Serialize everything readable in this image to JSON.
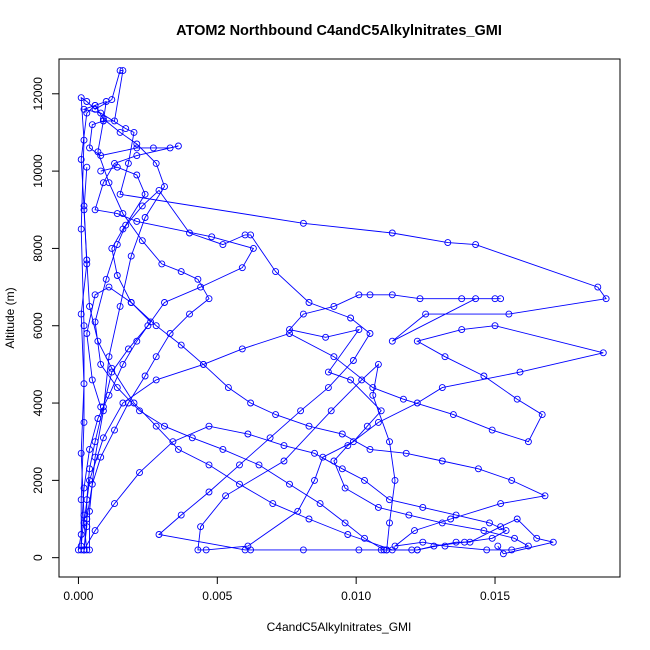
{
  "chart_data": {
    "type": "line",
    "title": "ATOM2 Northbound C4andC5Alkylnitrates_GMI",
    "xlabel": "C4andC5Alkylnitrates_GMI",
    "ylabel": "Altitude (m)",
    "xlim": [
      -0.0007,
      0.0195
    ],
    "ylim": [
      -500,
      12900
    ],
    "x_ticks": [
      0.0,
      0.005,
      0.01,
      0.015
    ],
    "x_tick_labels": [
      "0.000",
      "0.005",
      "0.010",
      "0.015"
    ],
    "y_ticks": [
      0,
      2000,
      4000,
      6000,
      8000,
      10000,
      12000
    ],
    "y_tick_labels": [
      "0",
      "2000",
      "4000",
      "6000",
      "8000",
      "10000",
      "12000"
    ],
    "grid": false,
    "marker": "open-circle",
    "color": "#0000ff",
    "series": [
      {
        "values": [
          [
            0.0001,
            200
          ],
          [
            0.0001,
            1500
          ],
          [
            0.0002,
            3500
          ],
          [
            0.0002,
            6000
          ],
          [
            0.0001,
            8500
          ],
          [
            0.0002,
            10800
          ],
          [
            0.0001,
            11900
          ],
          [
            0.0003,
            11800
          ],
          [
            0.0006,
            11600
          ],
          [
            0.0012,
            11850
          ],
          [
            0.0015,
            12600
          ],
          [
            0.0016,
            12600
          ],
          [
            0.0013,
            11300
          ],
          [
            0.0009,
            11300
          ],
          [
            0.0005,
            11200
          ],
          [
            0.0004,
            10600
          ],
          [
            0.0008,
            10400
          ],
          [
            0.0021,
            10600
          ],
          [
            0.0027,
            10600
          ],
          [
            0.0033,
            10600
          ],
          [
            0.0036,
            10650
          ],
          [
            0.0021,
            10400
          ],
          [
            0.0013,
            10200
          ],
          [
            0.0009,
            9700
          ],
          [
            0.0006,
            9000
          ],
          [
            0.0014,
            8900
          ],
          [
            0.0021,
            8700
          ],
          [
            0.0048,
            8300
          ],
          [
            0.0063,
            8000
          ],
          [
            0.0059,
            7500
          ],
          [
            0.0044,
            7000
          ],
          [
            0.0031,
            6600
          ],
          [
            0.0025,
            6000
          ],
          [
            0.0018,
            5400
          ],
          [
            0.0012,
            4800
          ],
          [
            0.0009,
            3900
          ],
          [
            0.0006,
            3000
          ],
          [
            0.0004,
            2300
          ],
          [
            0.0003,
            1500
          ],
          [
            0.0003,
            800
          ],
          [
            0.0002,
            200
          ]
        ]
      },
      {
        "values": [
          [
            0.0004,
            200
          ],
          [
            0.0004,
            1200
          ],
          [
            0.0006,
            2600
          ],
          [
            0.0009,
            3800
          ],
          [
            0.0011,
            5200
          ],
          [
            0.0015,
            6500
          ],
          [
            0.0019,
            7800
          ],
          [
            0.0024,
            8800
          ],
          [
            0.0031,
            9600
          ],
          [
            0.0028,
            10200
          ],
          [
            0.0021,
            10700
          ],
          [
            0.0015,
            11000
          ],
          [
            0.0009,
            11350
          ],
          [
            0.0006,
            11700
          ],
          [
            0.0002,
            11600
          ],
          [
            0.0008,
            11500
          ],
          [
            0.0017,
            11100
          ],
          [
            0.002,
            11000
          ],
          [
            0.0018,
            10200
          ],
          [
            0.0015,
            9400
          ],
          [
            0.0081,
            8650
          ],
          [
            0.0113,
            8400
          ],
          [
            0.0133,
            8150
          ],
          [
            0.0143,
            8100
          ],
          [
            0.0187,
            7000
          ],
          [
            0.019,
            6700
          ],
          [
            0.0155,
            6300
          ],
          [
            0.0125,
            6300
          ],
          [
            0.0113,
            5600
          ],
          [
            0.0143,
            6700
          ],
          [
            0.015,
            6700
          ],
          [
            0.0152,
            6700
          ],
          [
            0.0138,
            6700
          ],
          [
            0.0123,
            6700
          ],
          [
            0.0113,
            6800
          ],
          [
            0.0105,
            6800
          ],
          [
            0.0101,
            6800
          ],
          [
            0.0092,
            6500
          ],
          [
            0.0081,
            6300
          ],
          [
            0.0076,
            5900
          ],
          [
            0.0089,
            5700
          ],
          [
            0.0101,
            5900
          ],
          [
            0.009,
            4800
          ],
          [
            0.0098,
            4600
          ],
          [
            0.0109,
            3800
          ],
          [
            0.0104,
            3400
          ],
          [
            0.0099,
            3000
          ],
          [
            0.0088,
            2600
          ],
          [
            0.0085,
            2000
          ],
          [
            0.0079,
            1200
          ],
          [
            0.0061,
            300
          ],
          [
            0.0046,
            200
          ],
          [
            0.0043,
            200
          ],
          [
            0.0044,
            800
          ],
          [
            0.0053,
            1600
          ],
          [
            0.0074,
            2500
          ],
          [
            0.0091,
            3800
          ],
          [
            0.0102,
            4600
          ],
          [
            0.0108,
            5000
          ],
          [
            0.0106,
            4200
          ],
          [
            0.0112,
            3000
          ],
          [
            0.0114,
            2000
          ],
          [
            0.0112,
            900
          ],
          [
            0.0111,
            200
          ],
          [
            0.0109,
            200
          ],
          [
            0.012,
            200
          ],
          [
            0.0122,
            200
          ],
          [
            0.0136,
            400
          ],
          [
            0.0141,
            400
          ],
          [
            0.0152,
            800
          ],
          [
            0.0158,
            1000
          ],
          [
            0.0165,
            500
          ],
          [
            0.0171,
            400
          ],
          [
            0.0153,
            100
          ],
          [
            0.0151,
            300
          ]
        ]
      },
      {
        "values": [
          [
            0.0003,
            200
          ],
          [
            0.0002,
            900
          ],
          [
            0.0004,
            2000
          ],
          [
            0.0009,
            3100
          ],
          [
            0.0016,
            4000
          ],
          [
            0.0028,
            4600
          ],
          [
            0.0045,
            5000
          ],
          [
            0.0059,
            5400
          ],
          [
            0.0076,
            5800
          ],
          [
            0.0092,
            5200
          ],
          [
            0.0106,
            4400
          ],
          [
            0.0117,
            4100
          ],
          [
            0.0135,
            3700
          ],
          [
            0.0149,
            3300
          ],
          [
            0.0162,
            3000
          ],
          [
            0.0167,
            3700
          ],
          [
            0.0158,
            4100
          ],
          [
            0.0146,
            4700
          ],
          [
            0.0132,
            5200
          ],
          [
            0.0122,
            5600
          ],
          [
            0.0138,
            5900
          ],
          [
            0.015,
            6000
          ],
          [
            0.0189,
            5300
          ],
          [
            0.0159,
            4800
          ],
          [
            0.0131,
            4400
          ],
          [
            0.0122,
            4000
          ],
          [
            0.0108,
            3500
          ],
          [
            0.0097,
            2900
          ],
          [
            0.0092,
            2500
          ],
          [
            0.0096,
            1800
          ],
          [
            0.0108,
            1300
          ],
          [
            0.0119,
            1100
          ],
          [
            0.0131,
            900
          ],
          [
            0.0146,
            700
          ],
          [
            0.0157,
            500
          ],
          [
            0.0162,
            300
          ],
          [
            0.0156,
            200
          ],
          [
            0.0147,
            200
          ],
          [
            0.0132,
            300
          ],
          [
            0.0124,
            400
          ],
          [
            0.0114,
            300
          ],
          [
            0.0121,
            700
          ],
          [
            0.0134,
            1000
          ],
          [
            0.0152,
            1400
          ],
          [
            0.0168,
            1600
          ],
          [
            0.0156,
            2000
          ],
          [
            0.0144,
            2300
          ],
          [
            0.0131,
            2500
          ],
          [
            0.0118,
            2700
          ],
          [
            0.0105,
            2800
          ],
          [
            0.0095,
            3200
          ],
          [
            0.0083,
            3400
          ],
          [
            0.0071,
            3700
          ],
          [
            0.0062,
            4000
          ],
          [
            0.0054,
            4400
          ],
          [
            0.0045,
            5000
          ],
          [
            0.0037,
            5500
          ],
          [
            0.0028,
            6000
          ],
          [
            0.0019,
            6600
          ],
          [
            0.0011,
            7000
          ],
          [
            0.0006,
            6800
          ],
          [
            0.0003,
            5800
          ],
          [
            0.0005,
            4600
          ],
          [
            0.0008,
            3900
          ]
        ]
      },
      {
        "values": [
          [
            0.0002,
            200
          ],
          [
            0.0006,
            700
          ],
          [
            0.0013,
            1400
          ],
          [
            0.0022,
            2200
          ],
          [
            0.0034,
            3000
          ],
          [
            0.0047,
            3400
          ],
          [
            0.0061,
            3200
          ],
          [
            0.0074,
            2900
          ],
          [
            0.0085,
            2700
          ],
          [
            0.0095,
            2300
          ],
          [
            0.0103,
            2000
          ],
          [
            0.0112,
            1500
          ],
          [
            0.0124,
            1300
          ],
          [
            0.0136,
            1100
          ],
          [
            0.0148,
            900
          ],
          [
            0.0154,
            700
          ],
          [
            0.0149,
            500
          ],
          [
            0.0139,
            400
          ],
          [
            0.0128,
            300
          ],
          [
            0.0122,
            200
          ],
          [
            0.011,
            200
          ],
          [
            0.0103,
            500
          ],
          [
            0.0096,
            900
          ],
          [
            0.0087,
            1400
          ],
          [
            0.0076,
            1900
          ],
          [
            0.0065,
            2400
          ],
          [
            0.0052,
            2800
          ],
          [
            0.0041,
            3100
          ],
          [
            0.0031,
            3400
          ],
          [
            0.0022,
            3800
          ],
          [
            0.0014,
            4400
          ],
          [
            0.0008,
            5000
          ],
          [
            0.0006,
            6100
          ],
          [
            0.001,
            7200
          ],
          [
            0.0014,
            8100
          ],
          [
            0.0017,
            8600
          ],
          [
            0.0024,
            9400
          ],
          [
            0.0021,
            9900
          ],
          [
            0.0014,
            10100
          ],
          [
            0.0008,
            10000
          ]
        ]
      },
      {
        "values": [
          [
            0.0001,
            300
          ],
          [
            0.0002,
            1100
          ],
          [
            0.0001,
            2700
          ],
          [
            0.0002,
            4500
          ],
          [
            0.0001,
            6300
          ],
          [
            0.0003,
            7600
          ],
          [
            0.0002,
            9100
          ],
          [
            0.0001,
            10300
          ],
          [
            0.0003,
            11500
          ],
          [
            0.0006,
            11700
          ],
          [
            0.001,
            11800
          ],
          [
            0.0009,
            11300
          ],
          [
            0.0007,
            10500
          ],
          [
            0.0011,
            9700
          ],
          [
            0.0016,
            8900
          ],
          [
            0.0023,
            8200
          ],
          [
            0.003,
            7600
          ],
          [
            0.0037,
            7400
          ],
          [
            0.0043,
            7200
          ],
          [
            0.0047,
            6700
          ],
          [
            0.004,
            6300
          ],
          [
            0.0033,
            5800
          ],
          [
            0.0028,
            5200
          ],
          [
            0.0024,
            4700
          ],
          [
            0.0018,
            4000
          ],
          [
            0.0013,
            3300
          ],
          [
            0.0008,
            2600
          ],
          [
            0.0005,
            1900
          ],
          [
            0.0003,
            1000
          ],
          [
            0.0002,
            200
          ]
        ]
      },
      {
        "values": [
          [
            0.0,
            200
          ],
          [
            0.0001,
            600
          ],
          [
            0.0002,
            1800
          ],
          [
            0.0004,
            2800
          ],
          [
            0.0007,
            3600
          ],
          [
            0.0011,
            4200
          ],
          [
            0.0016,
            5000
          ],
          [
            0.0021,
            5600
          ],
          [
            0.0026,
            6100
          ],
          [
            0.0019,
            6600
          ],
          [
            0.0014,
            7300
          ],
          [
            0.0012,
            8000
          ],
          [
            0.0016,
            8500
          ],
          [
            0.0023,
            9100
          ],
          [
            0.0029,
            9500
          ],
          [
            0.004,
            8400
          ],
          [
            0.0052,
            8100
          ],
          [
            0.006,
            8350
          ],
          [
            0.0062,
            8350
          ],
          [
            0.0071,
            7400
          ],
          [
            0.0083,
            6600
          ],
          [
            0.0098,
            6200
          ],
          [
            0.0105,
            5800
          ],
          [
            0.0099,
            5100
          ],
          [
            0.009,
            4400
          ],
          [
            0.008,
            3800
          ],
          [
            0.0069,
            3100
          ],
          [
            0.0058,
            2400
          ],
          [
            0.0047,
            1700
          ],
          [
            0.0037,
            1100
          ],
          [
            0.0029,
            600
          ],
          [
            0.006,
            200
          ],
          [
            0.0062,
            200
          ],
          [
            0.0081,
            200
          ],
          [
            0.0101,
            200
          ],
          [
            0.0111,
            200
          ],
          [
            0.0113,
            200
          ],
          [
            0.0097,
            600
          ],
          [
            0.0083,
            1000
          ],
          [
            0.007,
            1400
          ],
          [
            0.0058,
            1900
          ],
          [
            0.0047,
            2400
          ],
          [
            0.0036,
            2800
          ],
          [
            0.0028,
            3400
          ],
          [
            0.002,
            4000
          ],
          [
            0.0012,
            4900
          ],
          [
            0.0007,
            5600
          ],
          [
            0.0004,
            6500
          ],
          [
            0.0003,
            7700
          ],
          [
            0.0002,
            9000
          ],
          [
            0.0003,
            10100
          ]
        ]
      }
    ]
  }
}
